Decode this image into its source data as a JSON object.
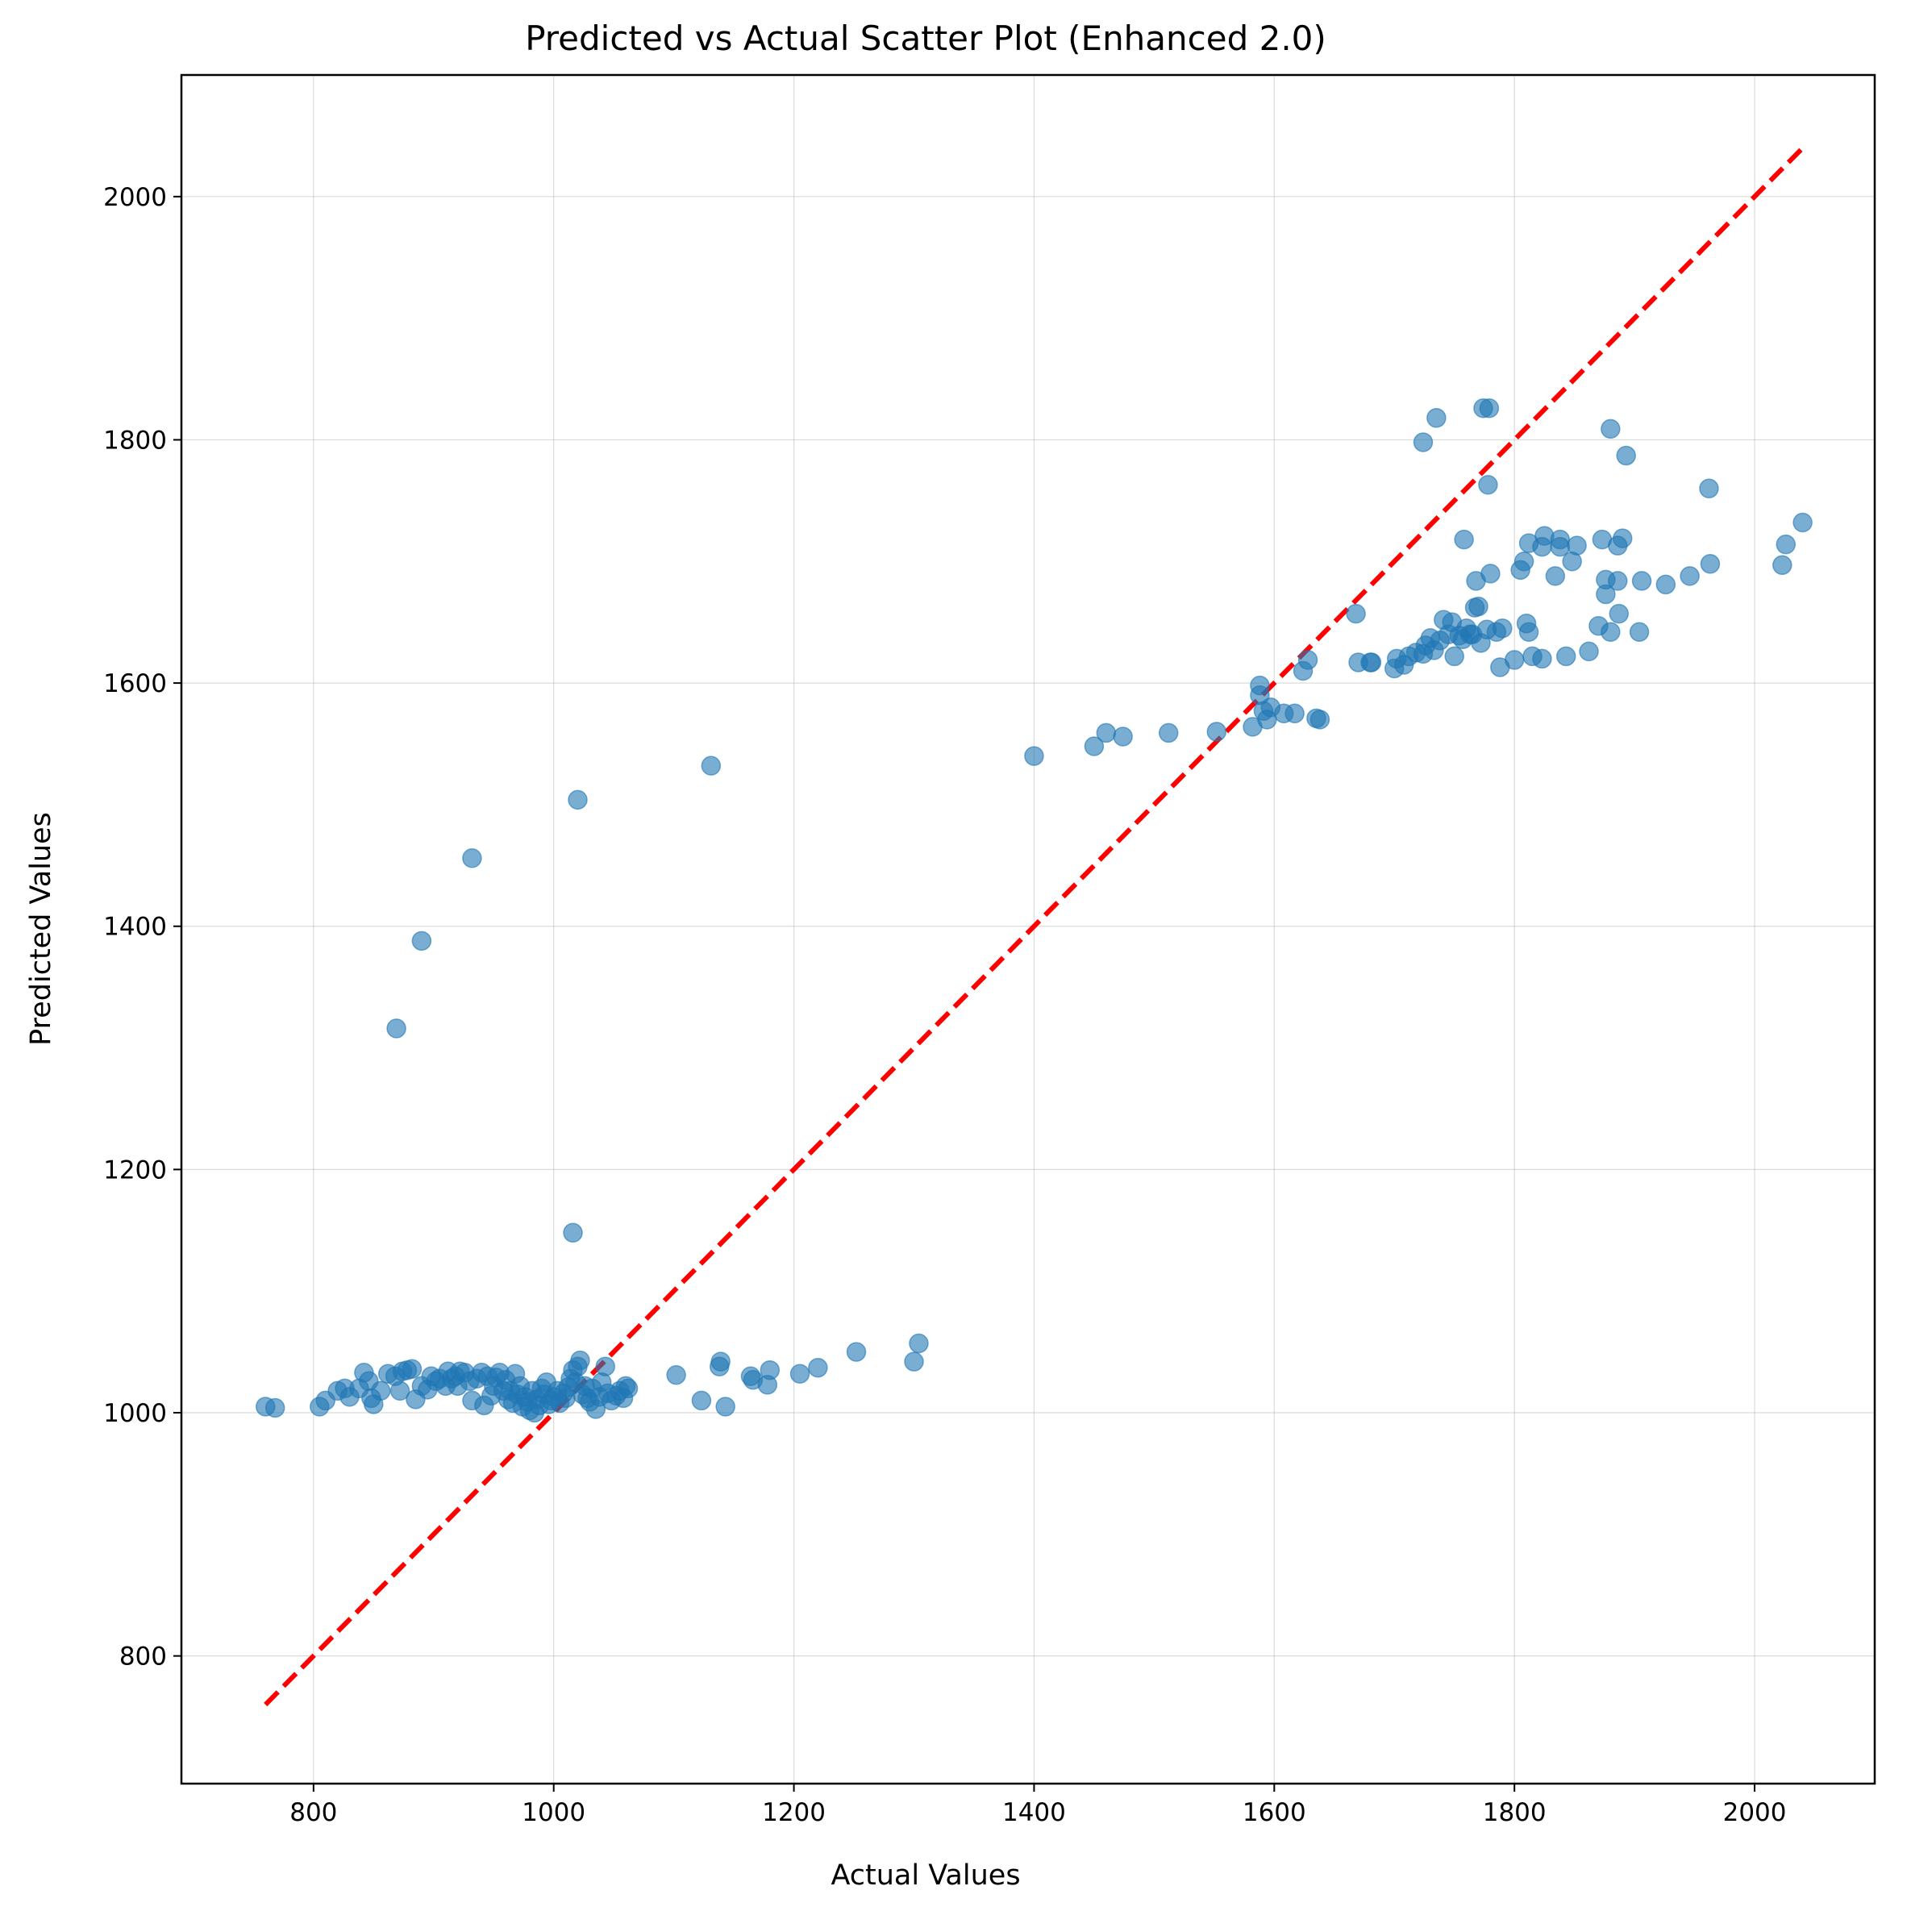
{
  "chart_data": {
    "type": "scatter",
    "title": "Predicted vs Actual Scatter Plot  (Enhanced 2.0)",
    "xlabel": "Actual Values",
    "ylabel": "Predicted Values",
    "xlim": [
      690,
      2100
    ],
    "ylim": [
      695,
      2100
    ],
    "xticks": [
      800,
      1000,
      1200,
      1400,
      1600,
      1800,
      2000
    ],
    "yticks": [
      800,
      1000,
      1200,
      1400,
      1600,
      1800,
      2000
    ],
    "xtick_labels": [
      "800",
      "1000",
      "1200",
      "1400",
      "1600",
      "1800",
      "2000"
    ],
    "ytick_labels": [
      "800",
      "1000",
      "1200",
      "1400",
      "1600",
      "1800",
      "2000"
    ],
    "grid": true,
    "point_color": "#1f77b4",
    "point_opacity": 0.6,
    "reference_line": {
      "from": [
        760,
        760
      ],
      "to": [
        2040,
        2040
      ],
      "color": "#ff0000",
      "style": "dashed"
    },
    "points": [
      [
        760,
        1005
      ],
      [
        768,
        1004
      ],
      [
        805,
        1005
      ],
      [
        810,
        1010
      ],
      [
        820,
        1018
      ],
      [
        826,
        1020
      ],
      [
        830,
        1013
      ],
      [
        838,
        1020
      ],
      [
        842,
        1033
      ],
      [
        846,
        1026
      ],
      [
        848,
        1012
      ],
      [
        850,
        1007
      ],
      [
        856,
        1018
      ],
      [
        862,
        1032
      ],
      [
        868,
        1030
      ],
      [
        872,
        1018
      ],
      [
        874,
        1034
      ],
      [
        878,
        1035
      ],
      [
        882,
        1036
      ],
      [
        885,
        1011
      ],
      [
        890,
        1022
      ],
      [
        895,
        1019
      ],
      [
        898,
        1030
      ],
      [
        902,
        1026
      ],
      [
        905,
        1028
      ],
      [
        910,
        1022
      ],
      [
        912,
        1034
      ],
      [
        915,
        1028
      ],
      [
        918,
        1030
      ],
      [
        920,
        1022
      ],
      [
        922,
        1034
      ],
      [
        926,
        1033
      ],
      [
        930,
        1026
      ],
      [
        932,
        1010
      ],
      [
        936,
        1028
      ],
      [
        940,
        1033
      ],
      [
        942,
        1006
      ],
      [
        945,
        1030
      ],
      [
        948,
        1014
      ],
      [
        950,
        1022
      ],
      [
        952,
        1029
      ],
      [
        955,
        1033
      ],
      [
        958,
        1018
      ],
      [
        960,
        1027
      ],
      [
        962,
        1011
      ],
      [
        964,
        1018
      ],
      [
        966,
        1008
      ],
      [
        968,
        1032
      ],
      [
        970,
        1015
      ],
      [
        972,
        1022
      ],
      [
        974,
        1005
      ],
      [
        976,
        1013
      ],
      [
        978,
        1009
      ],
      [
        980,
        1002
      ],
      [
        982,
        1018
      ],
      [
        984,
        1000
      ],
      [
        986,
        1011
      ],
      [
        988,
        1006
      ],
      [
        990,
        1020
      ],
      [
        992,
        1015
      ],
      [
        994,
        1025
      ],
      [
        996,
        1007
      ],
      [
        998,
        1010
      ],
      [
        1000,
        1013
      ],
      [
        1003,
        1018
      ],
      [
        1005,
        1008
      ],
      [
        1008,
        1016
      ],
      [
        1010,
        1012
      ],
      [
        1012,
        1021
      ],
      [
        1014,
        1028
      ],
      [
        1016,
        1035
      ],
      [
        1018,
        1025
      ],
      [
        1020,
        1038
      ],
      [
        1022,
        1043
      ],
      [
        1024,
        1015
      ],
      [
        1026,
        1022
      ],
      [
        1028,
        1012
      ],
      [
        1030,
        1009
      ],
      [
        1032,
        1020
      ],
      [
        1035,
        1003
      ],
      [
        1038,
        1013
      ],
      [
        1040,
        1025
      ],
      [
        1043,
        1038
      ],
      [
        1045,
        1016
      ],
      [
        1048,
        1010
      ],
      [
        1052,
        1014
      ],
      [
        1055,
        1018
      ],
      [
        1058,
        1012
      ],
      [
        1060,
        1022
      ],
      [
        1062,
        1020
      ],
      [
        1016,
        1148
      ],
      [
        1102,
        1031
      ],
      [
        1123,
        1010
      ],
      [
        1138,
        1038
      ],
      [
        1139,
        1042
      ],
      [
        1143,
        1005
      ],
      [
        1164,
        1030
      ],
      [
        1166,
        1027
      ],
      [
        1178,
        1023
      ],
      [
        1180,
        1035
      ],
      [
        1205,
        1032
      ],
      [
        1220,
        1037
      ],
      [
        1252,
        1050
      ],
      [
        1300,
        1042
      ],
      [
        1304,
        1057
      ],
      [
        869,
        1316
      ],
      [
        890,
        1388
      ],
      [
        932,
        1456
      ],
      [
        1020,
        1504
      ],
      [
        1131,
        1532
      ],
      [
        1400,
        1540
      ],
      [
        1450,
        1548
      ],
      [
        1460,
        1559
      ],
      [
        1474,
        1556
      ],
      [
        1512,
        1559
      ],
      [
        1552,
        1560
      ],
      [
        1582,
        1564
      ],
      [
        1588,
        1598
      ],
      [
        1588,
        1590
      ],
      [
        1591,
        1577
      ],
      [
        1594,
        1570
      ],
      [
        1597,
        1580
      ],
      [
        1608,
        1575
      ],
      [
        1617,
        1575
      ],
      [
        1624,
        1610
      ],
      [
        1628,
        1619
      ],
      [
        1635,
        1571
      ],
      [
        1638,
        1570
      ],
      [
        1668,
        1657
      ],
      [
        1670,
        1617
      ],
      [
        1680,
        1617
      ],
      [
        1681,
        1617
      ],
      [
        1700,
        1612
      ],
      [
        1702,
        1620
      ],
      [
        1708,
        1615
      ],
      [
        1712,
        1622
      ],
      [
        1718,
        1625
      ],
      [
        1724,
        1624
      ],
      [
        1726,
        1631
      ],
      [
        1730,
        1637
      ],
      [
        1733,
        1627
      ],
      [
        1738,
        1635
      ],
      [
        1741,
        1652
      ],
      [
        1745,
        1640
      ],
      [
        1748,
        1650
      ],
      [
        1750,
        1622
      ],
      [
        1754,
        1639
      ],
      [
        1757,
        1636
      ],
      [
        1758,
        1718
      ],
      [
        1760,
        1645
      ],
      [
        1763,
        1640
      ],
      [
        1765,
        1640
      ],
      [
        1767,
        1662
      ],
      [
        1768,
        1684
      ],
      [
        1770,
        1663
      ],
      [
        1772,
        1633
      ],
      [
        1774,
        1826
      ],
      [
        1777,
        1644
      ],
      [
        1779,
        1826
      ],
      [
        1780,
        1690
      ],
      [
        1778,
        1763
      ],
      [
        1785,
        1642
      ],
      [
        1788,
        1613
      ],
      [
        1790,
        1645
      ],
      [
        1800,
        1619
      ],
      [
        1805,
        1693
      ],
      [
        1808,
        1700
      ],
      [
        1810,
        1649
      ],
      [
        1812,
        1642
      ],
      [
        1812,
        1715
      ],
      [
        1815,
        1622
      ],
      [
        1823,
        1620
      ],
      [
        1823,
        1712
      ],
      [
        1825,
        1721
      ],
      [
        1834,
        1688
      ],
      [
        1838,
        1718
      ],
      [
        1838,
        1712
      ],
      [
        1843,
        1622
      ],
      [
        1848,
        1700
      ],
      [
        1852,
        1713
      ],
      [
        1862,
        1626
      ],
      [
        1870,
        1647
      ],
      [
        1873,
        1718
      ],
      [
        1876,
        1673
      ],
      [
        1876,
        1685
      ],
      [
        1880,
        1642
      ],
      [
        1880,
        1809
      ],
      [
        1886,
        1684
      ],
      [
        1886,
        1713
      ],
      [
        1887,
        1657
      ],
      [
        1890,
        1719
      ],
      [
        1893,
        1787
      ],
      [
        1904,
        1642
      ],
      [
        1906,
        1684
      ],
      [
        1926,
        1681
      ],
      [
        1946,
        1688
      ],
      [
        1962,
        1760
      ],
      [
        1963,
        1698
      ],
      [
        2023,
        1697
      ],
      [
        2026,
        1714
      ],
      [
        2040,
        1732
      ],
      [
        1724,
        1798
      ],
      [
        1735,
        1818
      ]
    ]
  }
}
